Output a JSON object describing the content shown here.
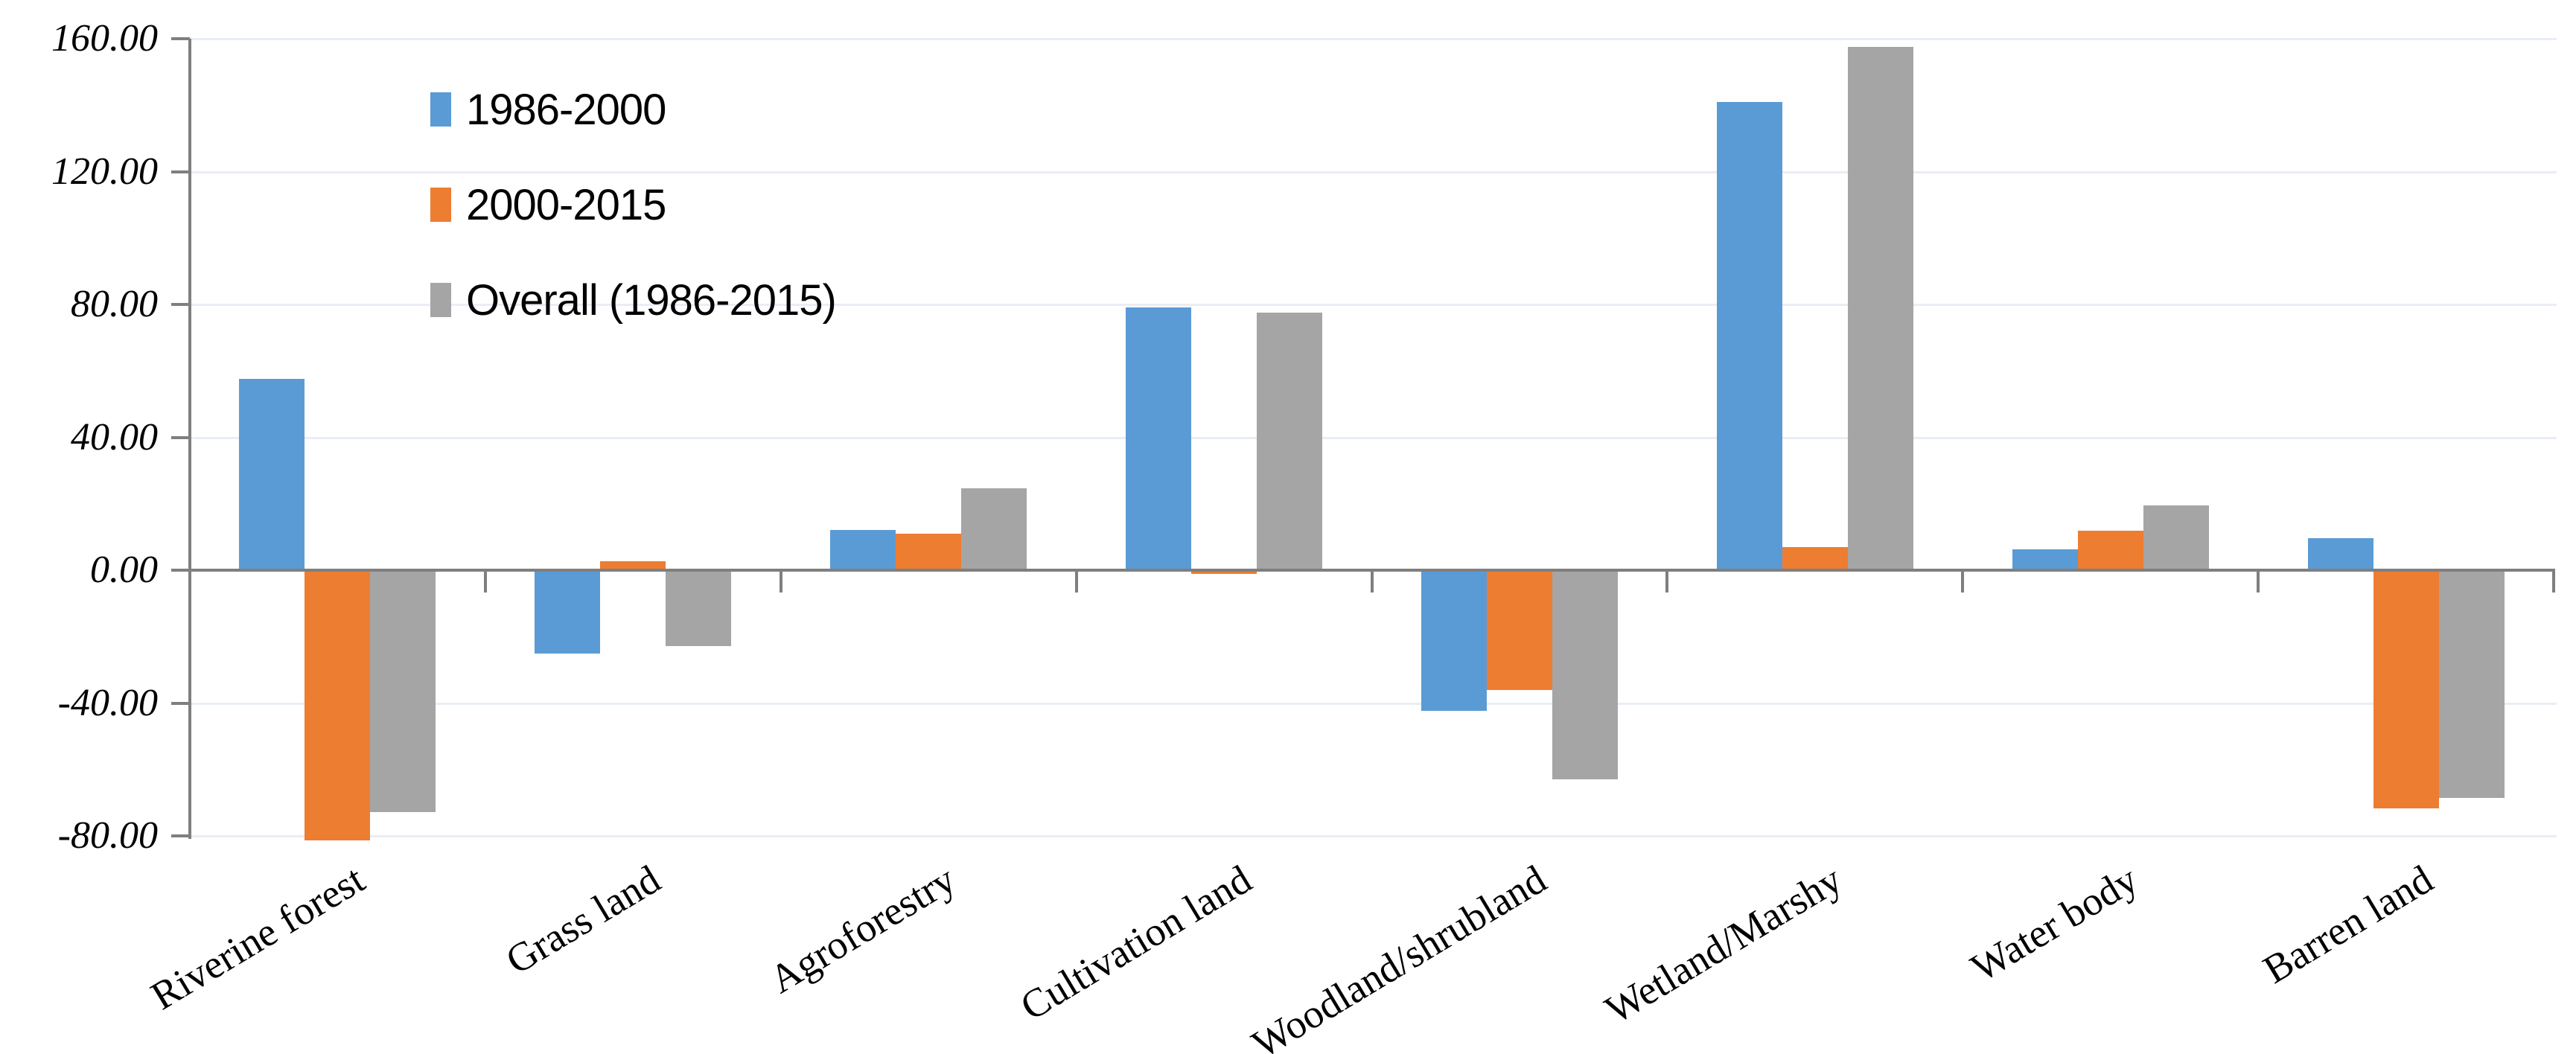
{
  "chart_data": {
    "type": "bar",
    "title": "",
    "xlabel": "",
    "ylabel": "",
    "categories": [
      "Riverine forest",
      "Grass land",
      "Agroforestry",
      "Cultivation land",
      "Woodland/shrubland",
      "Wetland/Marshy",
      "Water body",
      "Barren land"
    ],
    "series": [
      {
        "name": "1986-2000",
        "color": "#5B9BD5",
        "values": [
          57.5,
          -25.1,
          12.2,
          79.0,
          -42.3,
          140.9,
          6.3,
          9.6
        ]
      },
      {
        "name": "2000-2015",
        "color": "#ED7D31",
        "values": [
          -81.4,
          2.7,
          10.9,
          -1.1,
          -36.0,
          6.9,
          11.9,
          -71.6
        ]
      },
      {
        "name": "Overall (1986-2015)",
        "color": "#A5A5A5",
        "values": [
          -72.8,
          -22.9,
          24.7,
          77.6,
          -62.9,
          157.6,
          19.5,
          -68.5
        ]
      }
    ],
    "ylim": [
      -80,
      160
    ],
    "ytick_step": 40,
    "y_axis_tick_labels": [
      "160.00",
      "120.00",
      "80.00",
      "40.00",
      "0.00",
      "-40.00",
      "-80.00"
    ],
    "grid": true,
    "legend_position": "inside-top-left"
  },
  "styles": {
    "axis_color": "#7F7F7F",
    "gridline_color": "#E9EDF5",
    "text_color": "#000000",
    "background": "#FFFFFF"
  }
}
